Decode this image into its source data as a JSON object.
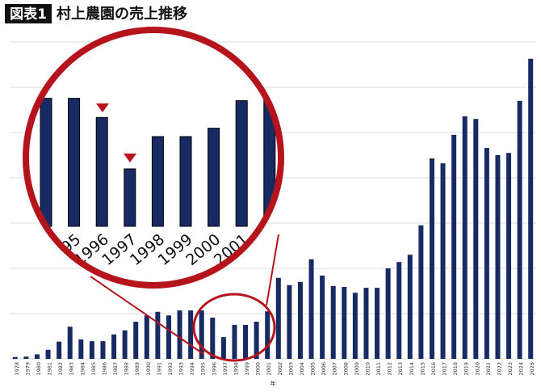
{
  "chart_data": {
    "type": "bar",
    "figure_label": "図表1",
    "title": "村上農園の売上推移",
    "x_label": "年",
    "categories": [
      "1978",
      "1979",
      "1980",
      "1981",
      "1982",
      "1983",
      "1984",
      "1985",
      "1986",
      "1987",
      "1988",
      "1989",
      "1990",
      "1991",
      "1992",
      "1993",
      "1994",
      "1995",
      "1996",
      "1997",
      "1998",
      "1999",
      "2000",
      "2001",
      "2002",
      "2003",
      "2004",
      "2005",
      "2006",
      "2007",
      "2008",
      "2009",
      "2010",
      "2011",
      "2012",
      "2013",
      "2014",
      "2015",
      "2016",
      "2017",
      "2018",
      "2019",
      "2020",
      "2021",
      "2022",
      "2023",
      "2024",
      "2025"
    ],
    "values": [
      0.04,
      0.05,
      0.1,
      0.2,
      0.38,
      0.71,
      0.43,
      0.39,
      0.39,
      0.54,
      0.63,
      0.82,
      0.96,
      1.04,
      0.96,
      1.07,
      1.07,
      1.07,
      0.91,
      0.48,
      0.75,
      0.75,
      0.82,
      1.05,
      1.79,
      1.63,
      1.7,
      2.2,
      1.84,
      1.61,
      1.59,
      1.46,
      1.57,
      1.57,
      2.0,
      2.14,
      2.3,
      2.95,
      4.43,
      4.32,
      4.95,
      5.36,
      5.3,
      4.66,
      4.5,
      4.55,
      5.7,
      6.63
    ],
    "color": "#172a63",
    "ylim": [
      0,
      7
    ],
    "yticks": [
      0,
      1,
      2,
      3,
      4,
      5,
      6,
      7
    ],
    "grid": true
  }
}
